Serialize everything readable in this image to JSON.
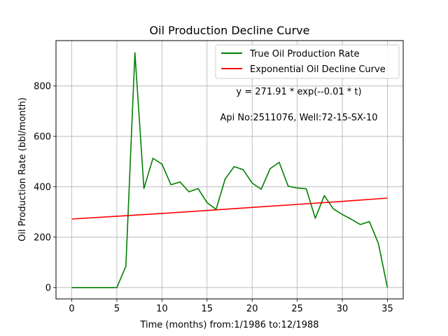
{
  "chart_data": {
    "type": "line",
    "title": "Oil Production Decline Curve",
    "xlabel": "Time (months) from:1/1986 to:12/1988",
    "ylabel": "Oil Production Rate (bbl/month)",
    "xlim": [
      -1.75,
      36.75
    ],
    "ylim": [
      -45,
      980
    ],
    "xticks": [
      0,
      5,
      10,
      15,
      20,
      25,
      30,
      35
    ],
    "yticks": [
      0,
      200,
      400,
      600,
      800
    ],
    "grid": true,
    "legend_position": "top-right",
    "series": [
      {
        "name": "True Oil Production Rate",
        "color": "#008000",
        "x": [
          0,
          1,
          2,
          3,
          4,
          5,
          6,
          7,
          8,
          9,
          10,
          11,
          12,
          13,
          14,
          15,
          16,
          17,
          18,
          19,
          20,
          21,
          22,
          23,
          24,
          25,
          26,
          27,
          28,
          29,
          30,
          31,
          32,
          33,
          34,
          35
        ],
        "y": [
          0,
          0,
          0,
          0,
          0,
          0,
          85,
          932,
          393,
          513,
          490,
          408,
          419,
          380,
          393,
          337,
          310,
          430,
          480,
          468,
          415,
          390,
          472,
          497,
          402,
          395,
          392,
          275,
          365,
          312,
          290,
          271,
          250,
          262,
          175,
          0
        ]
      },
      {
        "name": "Exponential Oil Decline Curve",
        "color": "#ff0000",
        "x": [
          0,
          5,
          10,
          15,
          20,
          25,
          30,
          35
        ],
        "y": [
          272,
          283,
          294,
          306,
          318,
          330,
          342,
          355
        ]
      }
    ],
    "annotations": [
      "y = 271.91 * exp(--0.01 * t)",
      "Api No:2511076, Well:72-15-SX-10"
    ]
  }
}
